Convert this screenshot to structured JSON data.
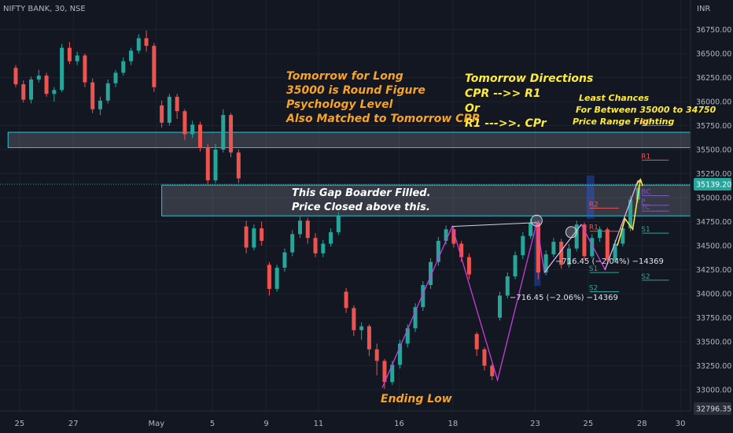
{
  "header": {
    "title": "NIFTY BANK, 30, NSE",
    "unit": "INR"
  },
  "colors": {
    "background": "#131722",
    "up": "#26a69a",
    "down": "#ef5350",
    "orange": "#f7a325",
    "yellow": "#ffeb3b",
    "white": "#ffffff",
    "zone_border": "#26c6da",
    "zigzag": "#c73edb",
    "axis_text": "#b2b5be",
    "marker_blue": "#1e4a7a"
  },
  "annotations": {
    "long_lines": [
      "Tomorrow for Long",
      "35000 is Round Figure",
      "Psychology Level",
      "Also Matched to Tomorrow CPR"
    ],
    "directions_lines": [
      "Tomorrow Directions",
      "CPR -->> R1",
      "Or",
      "R1 --->>. CPr"
    ],
    "chances_lines": [
      "Least Chances",
      "For Between 35000 to 34750",
      "Price Range Fighting"
    ],
    "gap_lines": [
      "This Gap Boarder Filled.",
      "Price Closed above this."
    ],
    "ending_low": "Ending Low",
    "measure_1": "−716.45 (−2.04%) −14369",
    "measure_2": "−716.45 (−2.06%) −14369"
  },
  "chart_data": {
    "type": "candlestick",
    "title": "NIFTY BANK, 30, NSE",
    "ylabel": "INR",
    "ylim": [
      32750,
      36950
    ],
    "y_ticks": [
      33000,
      33250,
      33500,
      33750,
      34000,
      34250,
      34500,
      34750,
      35000,
      35250,
      35500,
      35750,
      36000,
      36250,
      36500,
      36750
    ],
    "y_tick_labels": [
      "33000.00",
      "33250.00",
      "33500.00",
      "33750.00",
      "34000.00",
      "34250.00",
      "34500.00",
      "34750.00",
      "35000.00",
      "35250.00",
      "35500.00",
      "35750.00",
      "36000.00",
      "36250.00",
      "36500.00",
      "36750.00"
    ],
    "x_labels": [
      {
        "label": "25",
        "pos": 0.5
      },
      {
        "label": "27",
        "pos": 7.5
      },
      {
        "label": "May",
        "pos": 18.3
      },
      {
        "label": "5",
        "pos": 25.6
      },
      {
        "label": "9",
        "pos": 32.6
      },
      {
        "label": "11",
        "pos": 39.4
      },
      {
        "label": "16",
        "pos": 49.9
      },
      {
        "label": "18",
        "pos": 56.9
      },
      {
        "label": "23",
        "pos": 67.6
      },
      {
        "label": "25",
        "pos": 74.5
      },
      {
        "label": "28",
        "pos": 81.5
      },
      {
        "label": "30",
        "pos": 86.5
      }
    ],
    "current_price": {
      "value": 35139.2,
      "label": "35139.20"
    },
    "bottom_price": {
      "value": 32796.35,
      "label": "32796.35"
    },
    "zones": [
      {
        "low": 35520,
        "high": 35680,
        "x_from": -1,
        "x_to": 89
      },
      {
        "low": 34810,
        "high": 35130,
        "x_from": 19,
        "x_to": 89
      }
    ],
    "candles": [
      {
        "x": 0,
        "o": 36350,
        "h": 36380,
        "c": 36180,
        "l": 36150
      },
      {
        "x": 1,
        "o": 36180,
        "h": 36220,
        "c": 36020,
        "l": 35990
      },
      {
        "x": 2,
        "o": 36020,
        "h": 36260,
        "c": 36230,
        "l": 35980
      },
      {
        "x": 3,
        "o": 36230,
        "h": 36330,
        "c": 36270,
        "l": 36200
      },
      {
        "x": 4,
        "o": 36270,
        "h": 36300,
        "c": 36080,
        "l": 36050
      },
      {
        "x": 5,
        "o": 36080,
        "h": 36150,
        "c": 36120,
        "l": 36000
      },
      {
        "x": 6,
        "o": 36120,
        "h": 36600,
        "c": 36560,
        "l": 36100
      },
      {
        "x": 7,
        "o": 36560,
        "h": 36620,
        "c": 36420,
        "l": 36390
      },
      {
        "x": 8,
        "o": 36420,
        "h": 36520,
        "c": 36480,
        "l": 36380
      },
      {
        "x": 9,
        "o": 36480,
        "h": 36500,
        "c": 36200,
        "l": 36150
      },
      {
        "x": 10,
        "o": 36200,
        "h": 36240,
        "c": 35920,
        "l": 35880
      },
      {
        "x": 11,
        "o": 35920,
        "h": 36050,
        "c": 36010,
        "l": 35860
      },
      {
        "x": 12,
        "o": 36010,
        "h": 36230,
        "c": 36190,
        "l": 35980
      },
      {
        "x": 13,
        "o": 36190,
        "h": 36330,
        "c": 36300,
        "l": 36150
      },
      {
        "x": 14,
        "o": 36300,
        "h": 36460,
        "c": 36420,
        "l": 36270
      },
      {
        "x": 15,
        "o": 36420,
        "h": 36560,
        "c": 36530,
        "l": 36380
      },
      {
        "x": 16,
        "o": 36530,
        "h": 36700,
        "c": 36660,
        "l": 36500
      },
      {
        "x": 17,
        "o": 36660,
        "h": 36740,
        "c": 36580,
        "l": 36520
      },
      {
        "x": 18,
        "o": 36580,
        "h": 36610,
        "c": 36150,
        "l": 36100
      },
      {
        "x": 19,
        "o": 35960,
        "h": 36010,
        "c": 35780,
        "l": 35730
      },
      {
        "x": 20,
        "o": 35780,
        "h": 36080,
        "c": 36050,
        "l": 35750
      },
      {
        "x": 21,
        "o": 36050,
        "h": 36080,
        "c": 35900,
        "l": 35820
      },
      {
        "x": 22,
        "o": 35900,
        "h": 35920,
        "c": 35660,
        "l": 35600
      },
      {
        "x": 23,
        "o": 35660,
        "h": 35800,
        "c": 35760,
        "l": 35620
      },
      {
        "x": 24,
        "o": 35760,
        "h": 35790,
        "c": 35520,
        "l": 35480
      },
      {
        "x": 25,
        "o": 35520,
        "h": 35560,
        "c": 35180,
        "l": 35140
      },
      {
        "x": 26,
        "o": 35180,
        "h": 35560,
        "c": 35500,
        "l": 35150
      },
      {
        "x": 27,
        "o": 35500,
        "h": 35920,
        "c": 35860,
        "l": 35470
      },
      {
        "x": 28,
        "o": 35860,
        "h": 35880,
        "c": 35470,
        "l": 35420
      },
      {
        "x": 29,
        "o": 35470,
        "h": 35500,
        "c": 35200,
        "l": 35150
      },
      {
        "x": 30,
        "o": 34700,
        "h": 34760,
        "c": 34480,
        "l": 34420
      },
      {
        "x": 31,
        "o": 34480,
        "h": 34720,
        "c": 34680,
        "l": 34450
      },
      {
        "x": 32,
        "o": 34680,
        "h": 34750,
        "c": 34550,
        "l": 34500
      },
      {
        "x": 33,
        "o": 34300,
        "h": 34330,
        "c": 34050,
        "l": 33980
      },
      {
        "x": 34,
        "o": 34050,
        "h": 34300,
        "c": 34270,
        "l": 34020
      },
      {
        "x": 35,
        "o": 34270,
        "h": 34470,
        "c": 34430,
        "l": 34230
      },
      {
        "x": 36,
        "o": 34430,
        "h": 34660,
        "c": 34620,
        "l": 34390
      },
      {
        "x": 37,
        "o": 34620,
        "h": 34800,
        "c": 34760,
        "l": 34580
      },
      {
        "x": 38,
        "o": 34760,
        "h": 34790,
        "c": 34580,
        "l": 34520
      },
      {
        "x": 39,
        "o": 34580,
        "h": 34630,
        "c": 34420,
        "l": 34380
      },
      {
        "x": 40,
        "o": 34420,
        "h": 34560,
        "c": 34520,
        "l": 34380
      },
      {
        "x": 41,
        "o": 34520,
        "h": 34680,
        "c": 34640,
        "l": 34490
      },
      {
        "x": 42,
        "o": 34640,
        "h": 34850,
        "c": 34810,
        "l": 34610
      },
      {
        "x": 43,
        "o": 34020,
        "h": 34060,
        "c": 33850,
        "l": 33800
      },
      {
        "x": 44,
        "o": 33850,
        "h": 33880,
        "c": 33620,
        "l": 33560
      },
      {
        "x": 45,
        "o": 33620,
        "h": 33700,
        "c": 33660,
        "l": 33520
      },
      {
        "x": 46,
        "o": 33660,
        "h": 33680,
        "c": 33420,
        "l": 33350
      },
      {
        "x": 47,
        "o": 33420,
        "h": 33480,
        "c": 33300,
        "l": 33150
      },
      {
        "x": 48,
        "o": 33300,
        "h": 33320,
        "c": 33080,
        "l": 33010
      },
      {
        "x": 49,
        "o": 33080,
        "h": 33300,
        "c": 33260,
        "l": 33050
      },
      {
        "x": 50,
        "o": 33260,
        "h": 33520,
        "c": 33480,
        "l": 33220
      },
      {
        "x": 51,
        "o": 33480,
        "h": 33680,
        "c": 33640,
        "l": 33440
      },
      {
        "x": 52,
        "o": 33640,
        "h": 33900,
        "c": 33860,
        "l": 33600
      },
      {
        "x": 53,
        "o": 33860,
        "h": 34130,
        "c": 34090,
        "l": 33820
      },
      {
        "x": 54,
        "o": 34090,
        "h": 34370,
        "c": 34330,
        "l": 34050
      },
      {
        "x": 55,
        "o": 34330,
        "h": 34590,
        "c": 34550,
        "l": 34290
      },
      {
        "x": 56,
        "o": 34550,
        "h": 34710,
        "c": 34670,
        "l": 34510
      },
      {
        "x": 57,
        "o": 34670,
        "h": 34700,
        "c": 34520,
        "l": 34480
      },
      {
        "x": 58,
        "o": 34520,
        "h": 34550,
        "c": 34380,
        "l": 34330
      },
      {
        "x": 59,
        "o": 34380,
        "h": 34420,
        "c": 34200,
        "l": 34150
      },
      {
        "x": 60,
        "o": 33580,
        "h": 33600,
        "c": 33420,
        "l": 33350
      },
      {
        "x": 61,
        "o": 33420,
        "h": 33440,
        "c": 33250,
        "l": 33200
      },
      {
        "x": 62,
        "o": 33250,
        "h": 33270,
        "c": 33140,
        "l": 33100
      },
      {
        "x": 63,
        "o": 33750,
        "h": 34020,
        "c": 33980,
        "l": 33720
      },
      {
        "x": 64,
        "o": 33980,
        "h": 34220,
        "c": 34180,
        "l": 33950
      },
      {
        "x": 65,
        "o": 34180,
        "h": 34440,
        "c": 34400,
        "l": 34150
      },
      {
        "x": 66,
        "o": 34400,
        "h": 34640,
        "c": 34600,
        "l": 34360
      },
      {
        "x": 67,
        "o": 34600,
        "h": 34780,
        "c": 34740,
        "l": 34570
      },
      {
        "x": 68,
        "o": 34740,
        "h": 34760,
        "c": 34220,
        "l": 34150
      },
      {
        "x": 69,
        "o": 34220,
        "h": 34450,
        "c": 34410,
        "l": 34190
      },
      {
        "x": 70,
        "o": 34410,
        "h": 34580,
        "c": 34540,
        "l": 34380
      },
      {
        "x": 71,
        "o": 34540,
        "h": 34570,
        "c": 34300,
        "l": 34260
      },
      {
        "x": 72,
        "o": 34300,
        "h": 34520,
        "c": 34470,
        "l": 34270
      },
      {
        "x": 73,
        "o": 34470,
        "h": 34760,
        "c": 34720,
        "l": 34440
      },
      {
        "x": 74,
        "o": 34720,
        "h": 34740,
        "c": 34390,
        "l": 34350
      },
      {
        "x": 75,
        "o": 34390,
        "h": 34620,
        "c": 34580,
        "l": 34370
      },
      {
        "x": 76,
        "o": 34580,
        "h": 34700,
        "c": 34670,
        "l": 34540
      },
      {
        "x": 77,
        "o": 34670,
        "h": 34690,
        "c": 34350,
        "l": 34300
      },
      {
        "x": 78,
        "o": 34350,
        "h": 34560,
        "c": 34520,
        "l": 34330
      },
      {
        "x": 79,
        "o": 34520,
        "h": 34720,
        "c": 34680,
        "l": 34490
      },
      {
        "x": 80,
        "o": 34680,
        "h": 35020,
        "c": 34980,
        "l": 34650
      },
      {
        "x": 81,
        "o": 34980,
        "h": 35120,
        "c": 35100,
        "l": 34950
      }
    ],
    "zigzag": [
      [
        47.7,
        33020
      ],
      [
        56.8,
        34700
      ],
      [
        62.7,
        33100
      ],
      [
        67.8,
        34740
      ],
      [
        68.8,
        34220
      ],
      [
        73.6,
        34720
      ],
      [
        76.7,
        34250
      ],
      [
        81,
        35180
      ]
    ],
    "white_lines": [
      [
        [
          56.8,
          34700
        ],
        [
          67.8,
          34740
        ]
      ],
      [
        [
          68.8,
          34220
        ],
        [
          73.6,
          34720
        ]
      ],
      [
        [
          76.7,
          34250
        ],
        [
          81,
          35180
        ]
      ]
    ],
    "arrow": [
      [
        78.3,
        34500
      ],
      [
        79.3,
        34780
      ],
      [
        80.3,
        34670
      ],
      [
        81.3,
        35190
      ]
    ],
    "measure_boxes": [
      [
        67.5,
        34080,
        68.3,
        34760
      ],
      [
        74.3,
        34780,
        75.3,
        35230
      ]
    ],
    "pivots": [
      {
        "label": "R2",
        "value": 35750,
        "x_from": 81.5,
        "x_to": 85,
        "color": "#ef5350"
      },
      {
        "label": "R1",
        "value": 35390,
        "x_from": 81.5,
        "x_to": 85,
        "color": "#ef5350"
      },
      {
        "label": "BC",
        "value": 35020,
        "x_from": 81.5,
        "x_to": 85,
        "color": "#7e57c2"
      },
      {
        "label": "P",
        "value": 34920,
        "x_from": 81.5,
        "x_to": 85,
        "color": "#7e57c2"
      },
      {
        "label": "TC",
        "value": 34860,
        "x_from": 81.5,
        "x_to": 85,
        "color": "#7e57c2"
      },
      {
        "label": "S1",
        "value": 34630,
        "x_from": 81.5,
        "x_to": 85,
        "color": "#26a69a"
      },
      {
        "label": "S2",
        "value": 34140,
        "x_from": 81.5,
        "x_to": 85,
        "color": "#26a69a"
      },
      {
        "label": "R2",
        "value": 34890,
        "x_from": 74.7,
        "x_to": 78.5,
        "color": "#ef5350"
      },
      {
        "label": "R1",
        "value": 34650,
        "x_from": 74.7,
        "x_to": 78.5,
        "color": "#ef5350"
      },
      {
        "label": "S1",
        "value": 34220,
        "x_from": 74.7,
        "x_to": 78.5,
        "color": "#26a69a"
      },
      {
        "label": "S2",
        "value": 34020,
        "x_from": 74.7,
        "x_to": 78.5,
        "color": "#26a69a"
      }
    ]
  }
}
